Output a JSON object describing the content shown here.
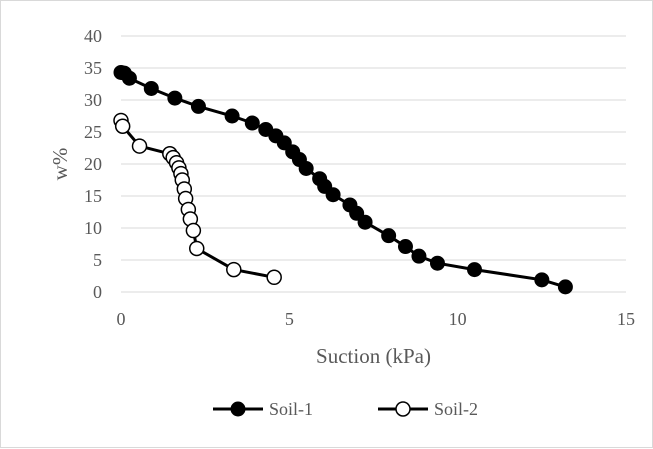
{
  "chart_data": {
    "type": "scatter",
    "xlabel": "Suction (kPa)",
    "ylabel": "w%",
    "xlim": [
      0,
      15
    ],
    "ylim": [
      0,
      40
    ],
    "xticks": [
      0,
      5,
      10,
      15
    ],
    "yticks": [
      0,
      5,
      10,
      15,
      20,
      25,
      30,
      35,
      40
    ],
    "grid": "horizontal",
    "legend": "bottom",
    "series": [
      {
        "name": "Soil-1",
        "marker": "filled-circle",
        "color": "#000000",
        "x": [
          0.0,
          0.1,
          0.25,
          0.9,
          1.6,
          2.3,
          3.3,
          3.9,
          4.3,
          4.6,
          4.85,
          5.1,
          5.3,
          5.5,
          5.9,
          6.05,
          6.3,
          6.8,
          7.0,
          7.25,
          7.95,
          8.45,
          8.85,
          9.4,
          10.5,
          12.5,
          13.2
        ],
        "y": [
          34.3,
          34.2,
          33.4,
          31.8,
          30.3,
          29.0,
          27.5,
          26.4,
          25.4,
          24.4,
          23.3,
          21.9,
          20.7,
          19.3,
          17.7,
          16.5,
          15.2,
          13.6,
          12.3,
          10.9,
          8.8,
          7.1,
          5.6,
          4.5,
          3.5,
          1.9,
          0.8
        ]
      },
      {
        "name": "Soil-2",
        "marker": "open-circle",
        "color": "#000000",
        "x": [
          0.0,
          0.05,
          0.55,
          1.45,
          1.55,
          1.65,
          1.72,
          1.78,
          1.82,
          1.88,
          1.92,
          2.0,
          2.06,
          2.15,
          2.25,
          3.35,
          4.55
        ],
        "y": [
          26.8,
          25.9,
          22.8,
          21.6,
          21.0,
          20.2,
          19.4,
          18.5,
          17.5,
          16.1,
          14.6,
          12.9,
          11.4,
          9.6,
          6.8,
          3.5,
          2.3
        ]
      }
    ]
  }
}
